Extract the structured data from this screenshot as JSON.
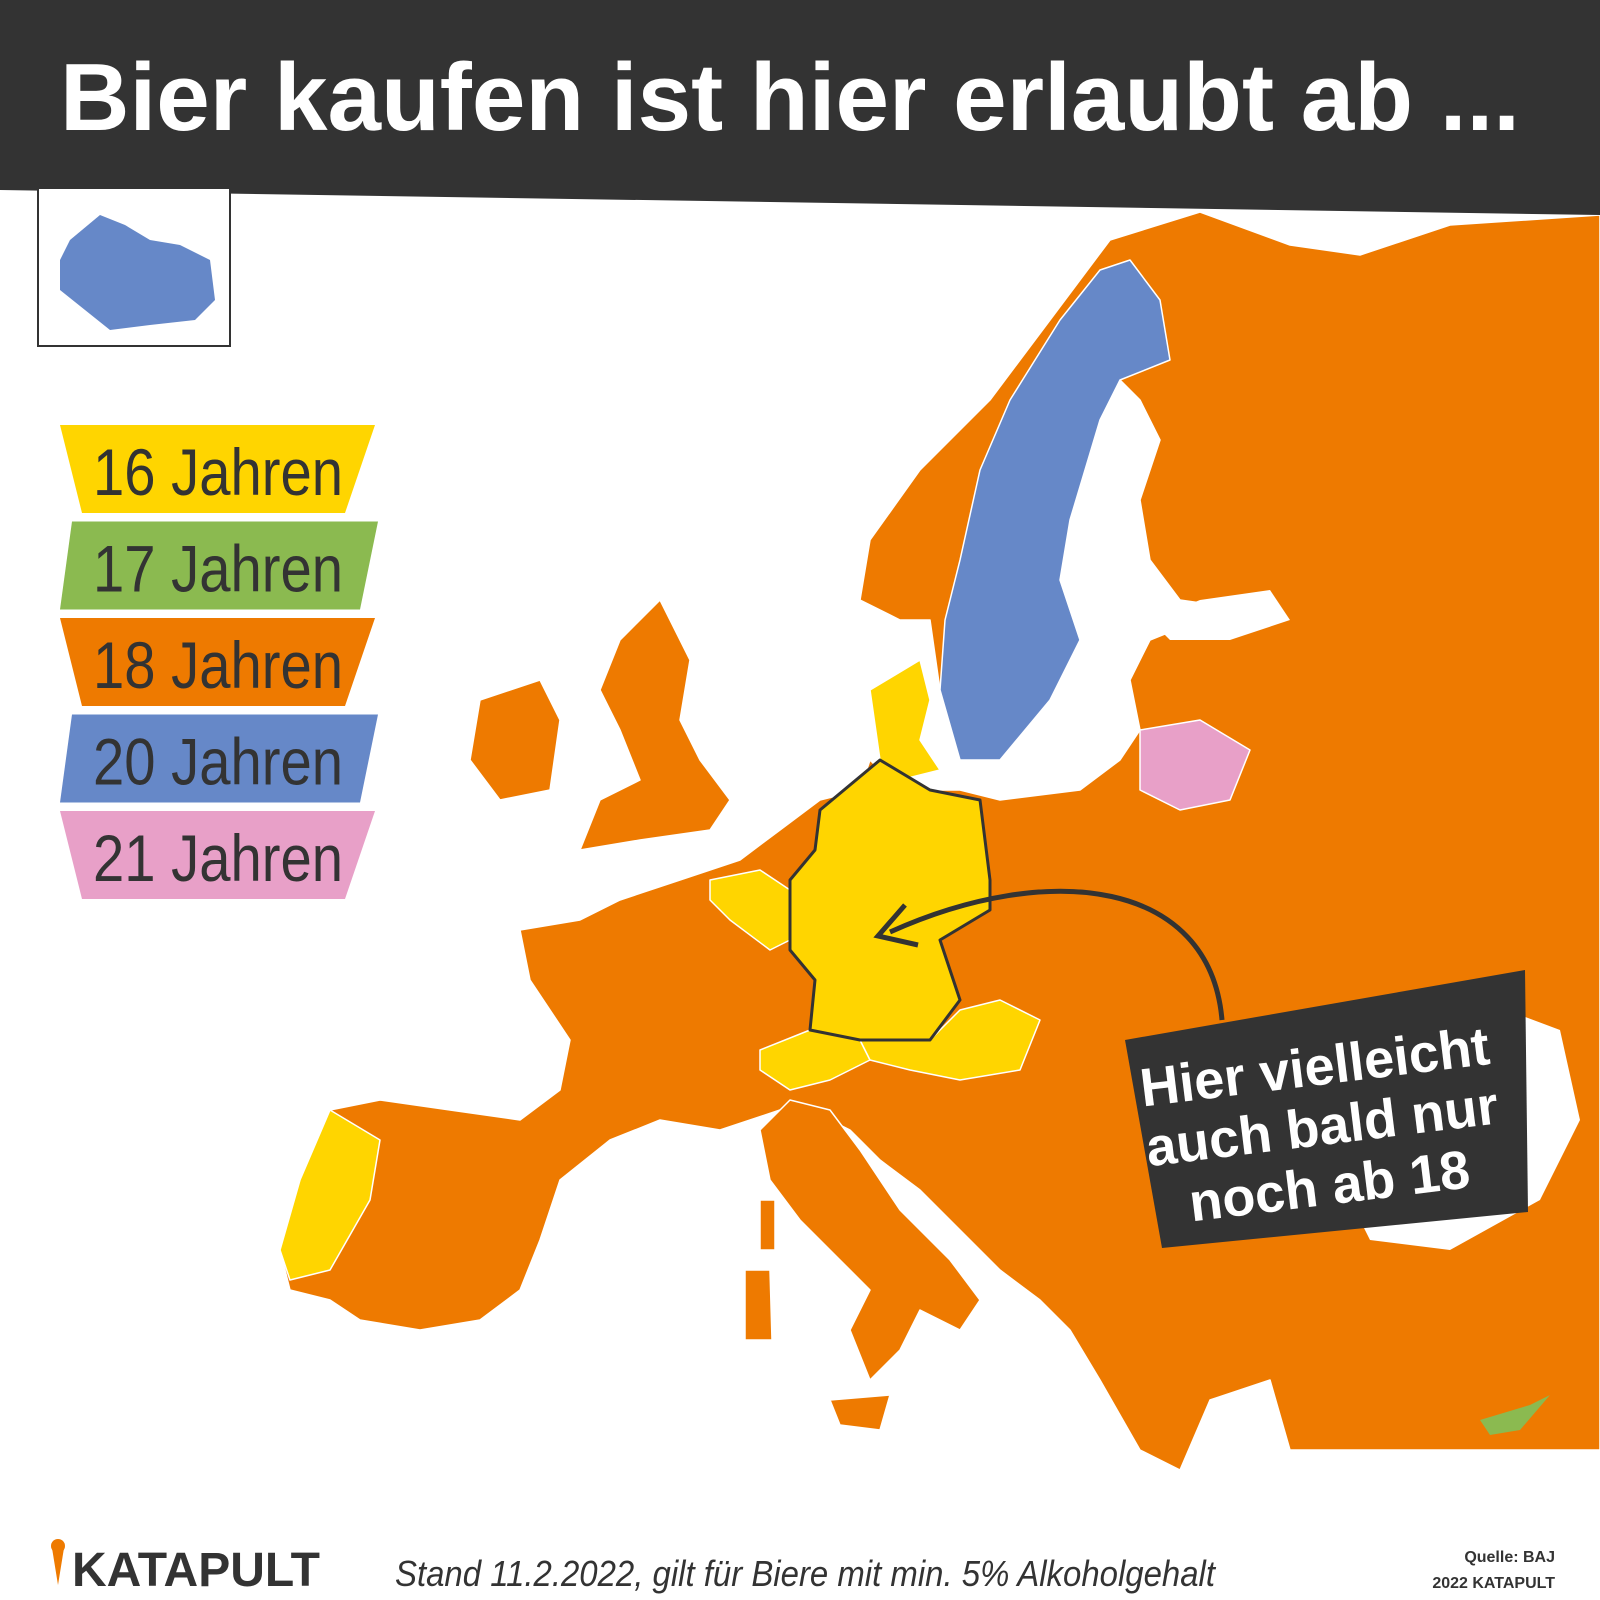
{
  "title": "Bier kaufen ist hier erlaubt ab ...",
  "legend": [
    {
      "label": "16 Jahren",
      "color": "#ffd500"
    },
    {
      "label": "17 Jahren",
      "color": "#8bba50"
    },
    {
      "label": "18 Jahren",
      "color": "#ee7a00"
    },
    {
      "label": "20 Jahren",
      "color": "#6688c8"
    },
    {
      "label": "21 Jahren",
      "color": "#e8a0c8"
    }
  ],
  "annotation": [
    "Hier vielleicht",
    "auch bald nur",
    "noch ab 18"
  ],
  "footer": {
    "logo": "KATAPULT",
    "note": "Stand 11.2.2022, gilt für Biere mit min. 5% Alkoholgehalt",
    "source": "Quelle: BAJ",
    "copyright": "2022 KATAPULT"
  }
}
